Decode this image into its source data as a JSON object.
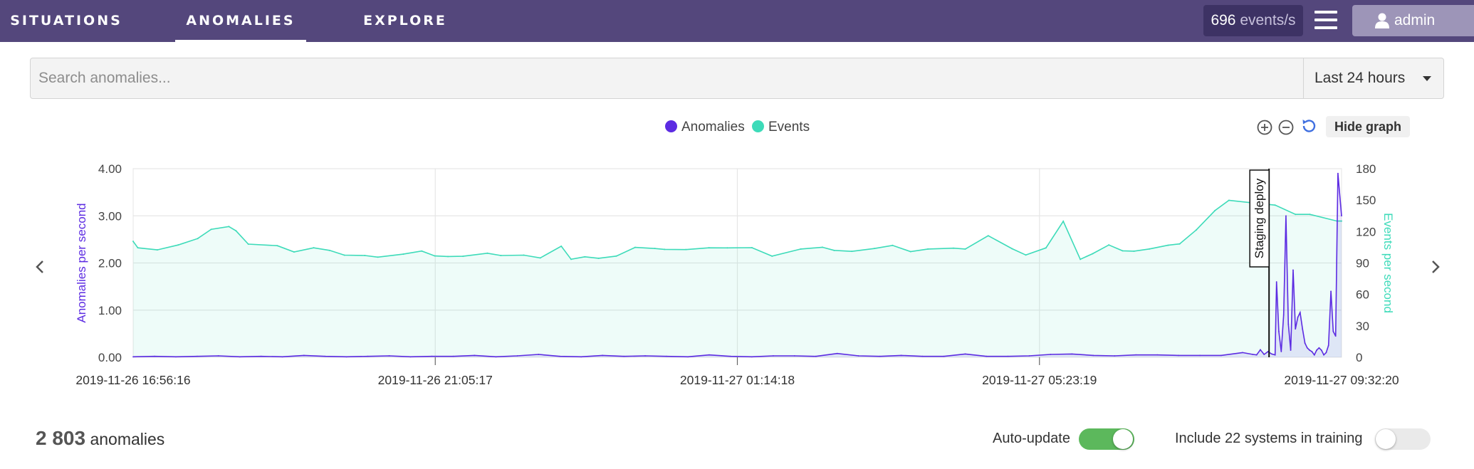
{
  "nav": {
    "tabs": [
      {
        "label": "SITUATIONS",
        "active": false
      },
      {
        "label": "ANOMALIES",
        "active": true
      },
      {
        "label": "EXPLORE",
        "active": false
      }
    ],
    "rate_value": "696",
    "rate_unit": "events/s",
    "menu_icon": "hamburger-menu-icon",
    "user_icon": "user-icon",
    "user_label": "admin"
  },
  "search": {
    "placeholder": "Search anomalies...",
    "time_range": "Last 24 hours"
  },
  "graph": {
    "hide_label": "Hide graph",
    "zoom_in_icon": "zoom-in-icon",
    "zoom_out_icon": "zoom-out-icon",
    "reset_icon": "reset-zoom-icon",
    "prev_icon": "chevron-left-icon",
    "next_icon": "chevron-right-icon"
  },
  "chart_data": {
    "type": "line",
    "legend": [
      {
        "name": "Anomalies",
        "color": "#5c2be2"
      },
      {
        "name": "Events",
        "color": "#3ddbb9"
      }
    ],
    "ylabel_left": "Anomalies per second",
    "ylabel_right": "Events per second",
    "y_left_ticks": [
      "0.00",
      "1.00",
      "2.00",
      "3.00",
      "4.00"
    ],
    "y_left_range": [
      0,
      4
    ],
    "y_right_ticks": [
      "0",
      "30",
      "60",
      "90",
      "120",
      "150",
      "180"
    ],
    "y_right_range": [
      0,
      180
    ],
    "x_ticks": [
      "2019-11-26 16:56:16",
      "2019-11-26 21:05:17",
      "2019-11-27 01:14:18",
      "2019-11-27 05:23:19",
      "2019-11-27 09:32:20"
    ],
    "annotation": {
      "label": "Staging deploy",
      "x": 0.94
    },
    "series": [
      {
        "name": "Events",
        "x": [
          0,
          0.0039,
          0.02,
          0.0373,
          0.0534,
          0.0646,
          0.0792,
          0.0851,
          0.0953,
          0.1193,
          0.1331,
          0.1494,
          0.1625,
          0.1748,
          0.1917,
          0.2025,
          0.2235,
          0.2388,
          0.2496,
          0.2605,
          0.2729,
          0.2931,
          0.3043,
          0.3233,
          0.3369,
          0.3543,
          0.3624,
          0.3738,
          0.3852,
          0.3999,
          0.4154,
          0.4318,
          0.4398,
          0.4574,
          0.4765,
          0.4917,
          0.5121,
          0.5287,
          0.5525,
          0.5704,
          0.5801,
          0.5947,
          0.6134,
          0.6284,
          0.6433,
          0.6577,
          0.6789,
          0.6886,
          0.7076,
          0.7274,
          0.7387,
          0.7554,
          0.7697,
          0.7838,
          0.794,
          0.8074,
          0.8188,
          0.8282,
          0.8411,
          0.8564,
          0.866,
          0.8798,
          0.8952,
          0.9068,
          0.9291,
          0.945,
          0.9619,
          0.9738,
          0.9962,
          1.0
        ],
        "values": [
          110.6,
          104.5,
          102.5,
          107.2,
          113.3,
          122.1,
          124.8,
          120.7,
          108.0,
          106.5,
          100.5,
          104.5,
          102.0,
          97.5,
          97.1,
          95.6,
          98.4,
          101.4,
          96.7,
          96.2,
          96.4,
          99.3,
          97.1,
          97.5,
          94.8,
          106.0,
          93.5,
          95.9,
          94.5,
          96.6,
          104.9,
          103.8,
          103.0,
          102.8,
          104.5,
          104.4,
          104.6,
          96.5,
          103.3,
          105.0,
          102.0,
          101.1,
          103.8,
          106.8,
          100.9,
          103.3,
          104.1,
          103.3,
          116.0,
          103.6,
          97.6,
          104.4,
          129.8,
          93.5,
          98.8,
          107.2,
          101.6,
          101.3,
          103.4,
          106.9,
          108.2,
          121.5,
          140.0,
          149.8,
          147.0,
          145.2,
          136.4,
          136.4,
          130.0,
          130.0
        ]
      },
      {
        "name": "Anomalies",
        "x": [
          0,
          0.0177,
          0.0353,
          0.053,
          0.0706,
          0.0883,
          0.1059,
          0.1236,
          0.1413,
          0.1589,
          0.1766,
          0.1942,
          0.2119,
          0.2295,
          0.2472,
          0.2648,
          0.2825,
          0.3002,
          0.3178,
          0.3355,
          0.3531,
          0.3708,
          0.3884,
          0.4061,
          0.4237,
          0.4414,
          0.4591,
          0.4767,
          0.4944,
          0.512,
          0.5297,
          0.5473,
          0.565,
          0.5826,
          0.6003,
          0.618,
          0.6356,
          0.6533,
          0.6709,
          0.6886,
          0.7062,
          0.7239,
          0.7415,
          0.7592,
          0.7769,
          0.7945,
          0.8122,
          0.8298,
          0.8475,
          0.8651,
          0.8828,
          0.9004,
          0.9181,
          0.9266,
          0.9297,
          0.9328,
          0.9359,
          0.9391,
          0.9422,
          0.945,
          0.9462,
          0.9481,
          0.9501,
          0.9521,
          0.954,
          0.956,
          0.9579,
          0.9599,
          0.9618,
          0.9638,
          0.9657,
          0.9677,
          0.9697,
          0.9716,
          0.9736,
          0.9755,
          0.9775,
          0.9794,
          0.9814,
          0.9834,
          0.9853,
          0.9873,
          0.9892,
          0.9912,
          0.9931,
          0.9951,
          0.997,
          1.0
        ],
        "values": [
          0.01,
          0.02,
          0.01,
          0.02,
          0.03,
          0.01,
          0.02,
          0.01,
          0.04,
          0.02,
          0.01,
          0.02,
          0.03,
          0.01,
          0.02,
          0.02,
          0.04,
          0.01,
          0.03,
          0.06,
          0.02,
          0.01,
          0.04,
          0.02,
          0.03,
          0.02,
          0.01,
          0.05,
          0.02,
          0.01,
          0.03,
          0.03,
          0.02,
          0.08,
          0.03,
          0.02,
          0.04,
          0.02,
          0.02,
          0.07,
          0.02,
          0.02,
          0.03,
          0.06,
          0.07,
          0.04,
          0.03,
          0.05,
          0.05,
          0.04,
          0.04,
          0.04,
          0.1,
          0.06,
          0.05,
          0.16,
          0.06,
          0.12,
          0.07,
          0.05,
          1.6,
          0.55,
          0.12,
          0.9,
          3.0,
          0.7,
          0.15,
          1.85,
          0.6,
          0.85,
          0.95,
          0.6,
          0.3,
          0.2,
          0.15,
          0.12,
          0.05,
          0.15,
          0.2,
          0.15,
          0.05,
          0.1,
          0.25,
          1.4,
          0.55,
          0.45,
          3.9,
          3.0
        ]
      }
    ]
  },
  "footer": {
    "count": "2 803",
    "count_label": "anomalies",
    "auto_update_label": "Auto-update",
    "auto_update_on": true,
    "training_label": "Include 22 systems in training",
    "training_on": false
  }
}
